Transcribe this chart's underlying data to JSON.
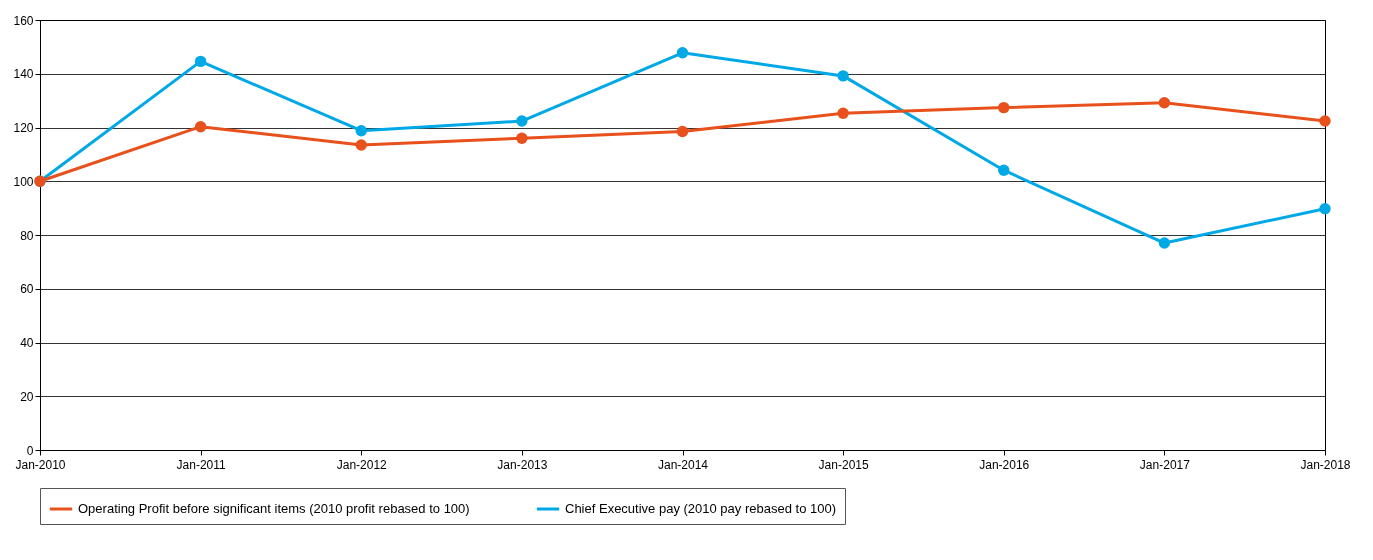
{
  "chart_data": {
    "type": "line",
    "categories": [
      "Jan-2010",
      "Jan-2011",
      "Jan-2012",
      "Jan-2013",
      "Jan-2014",
      "Jan-2015",
      "Jan-2016",
      "Jan-2017",
      "Jan-2018"
    ],
    "series": [
      {
        "name": "Operating Profit before significant items (2010 profit rebased to 100)",
        "color": "#e8501c",
        "values": [
          100,
          120.3,
          113.5,
          116,
          118.5,
          125.3,
          127.4,
          129.2,
          122.4
        ]
      },
      {
        "name": "Chief Executive pay (2010 pay rebased to 100)",
        "color": "#00a9e6",
        "values": [
          100,
          144.6,
          118.8,
          122.4,
          147.8,
          139.2,
          104.1,
          77,
          89.8
        ]
      }
    ],
    "ylim": [
      0,
      160
    ],
    "yticks": [
      0,
      20,
      40,
      60,
      80,
      100,
      120,
      140,
      160
    ],
    "grid": "y",
    "legend": "bottom",
    "marker": "circle",
    "line_style": "solid"
  }
}
